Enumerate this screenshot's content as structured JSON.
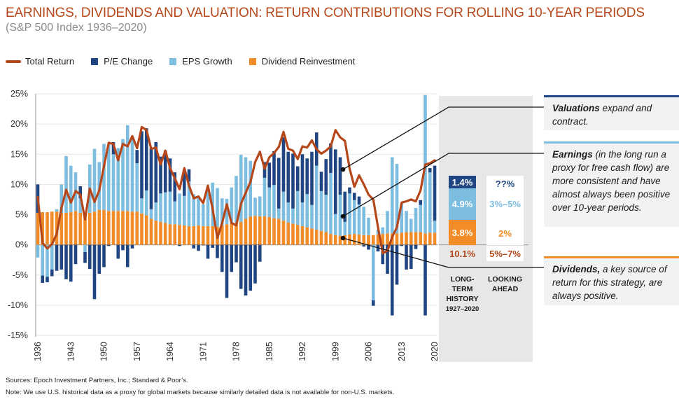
{
  "header": {
    "title": "EARNINGS, DIVIDENDS AND VALUATION: RETURN CONTRIBUTIONS FOR ROLLING 10-YEAR PERIODS",
    "subtitle": "(S&P 500 Index 1936–2020)"
  },
  "legend": {
    "total_return": "Total Return",
    "pe_change": "P/E Change",
    "eps_growth": "EPS Growth",
    "dividend": "Dividend Reinvestment"
  },
  "colors": {
    "total_return": "#b5471b",
    "pe_change": "#1f4682",
    "eps_growth": "#7cbde0",
    "dividend": "#f28c28",
    "title": "#b5471b",
    "panel": "#e8e7e6"
  },
  "chart_data": {
    "type": "bar",
    "subtype": "stacked bar with line overlay",
    "title": "EARNINGS, DIVIDENDS AND VALUATION: RETURN CONTRIBUTIONS FOR ROLLING 10-YEAR PERIODS",
    "subtitle": "(S&P 500 Index 1936–2020)",
    "xlabel": "",
    "ylabel": "",
    "ylim": [
      -15,
      25
    ],
    "yticks": [
      25,
      20,
      15,
      10,
      5,
      0,
      -5,
      -10,
      -15
    ],
    "ytick_labels": [
      "25%",
      "20%",
      "15%",
      "10%",
      "5%",
      "0%",
      "-5%",
      "-10%",
      "-15%"
    ],
    "xtick_labels": [
      "1936",
      "1943",
      "1950",
      "1957",
      "1964",
      "1971",
      "1978",
      "1985",
      "1992",
      "1999",
      "2006",
      "2013",
      "2020"
    ],
    "grid": true,
    "legend_position": "top-left",
    "x": [
      1936,
      1937,
      1938,
      1939,
      1940,
      1941,
      1942,
      1943,
      1944,
      1945,
      1946,
      1947,
      1948,
      1949,
      1950,
      1951,
      1952,
      1953,
      1954,
      1955,
      1956,
      1957,
      1958,
      1959,
      1960,
      1961,
      1962,
      1963,
      1964,
      1965,
      1966,
      1967,
      1968,
      1969,
      1970,
      1971,
      1972,
      1973,
      1974,
      1975,
      1976,
      1977,
      1978,
      1979,
      1980,
      1981,
      1982,
      1983,
      1984,
      1985,
      1986,
      1987,
      1988,
      1989,
      1990,
      1991,
      1992,
      1993,
      1994,
      1995,
      1996,
      1997,
      1998,
      1999,
      2000,
      2001,
      2002,
      2003,
      2004,
      2005,
      2006,
      2007,
      2008,
      2009,
      2010,
      2011,
      2012,
      2013,
      2014,
      2015,
      2016,
      2017,
      2018,
      2019,
      2020
    ],
    "series": [
      {
        "name": "Dividend Reinvestment",
        "kind": "bar",
        "values": [
          5.3,
          5.4,
          5.4,
          5.5,
          5.5,
          5.3,
          5.3,
          5.4,
          5.6,
          5.3,
          5.2,
          5.3,
          5.5,
          5.8,
          5.8,
          5.6,
          5.6,
          5.6,
          5.6,
          5.6,
          5.5,
          5.5,
          5.2,
          4.9,
          4.3,
          4.0,
          3.8,
          3.6,
          3.4,
          3.4,
          3.3,
          3.2,
          3.1,
          3.1,
          3.2,
          3.1,
          3.1,
          3.1,
          3.0,
          3.2,
          3.4,
          3.5,
          3.6,
          3.8,
          4.3,
          4.7,
          4.8,
          4.7,
          4.7,
          4.6,
          4.4,
          4.3,
          4.0,
          3.7,
          3.5,
          3.3,
          3.1,
          2.9,
          2.7,
          2.5,
          2.3,
          2.1,
          1.8,
          1.6,
          1.5,
          1.6,
          1.7,
          1.8,
          1.7,
          1.6,
          1.6,
          1.6,
          1.7,
          1.8,
          1.9,
          1.9,
          1.9,
          2.0,
          2.1,
          2.1,
          2.1,
          2.1,
          1.9,
          2.0,
          2.0
        ]
      },
      {
        "name": "EPS Growth",
        "kind": "bar",
        "values": [
          -2.1,
          -5.1,
          -5.3,
          -4.1,
          0.4,
          4.7,
          9.4,
          7.7,
          6.4,
          2.4,
          -1.2,
          8.0,
          10.4,
          7.9,
          10.9,
          11.1,
          9.4,
          10.4,
          11.9,
          14.2,
          12.4,
          8.0,
          2.5,
          4.1,
          1.6,
          3.0,
          4.7,
          5.1,
          5.4,
          3.8,
          5.2,
          4.9,
          7.4,
          5.3,
          4.7,
          3.6,
          6.0,
          7.2,
          6.4,
          4.5,
          4.2,
          6.0,
          7.8,
          11.1,
          10.2,
          9.2,
          3.0,
          3.3,
          6.4,
          4.9,
          5.5,
          1.7,
          4.8,
          3.3,
          2.5,
          5.6,
          3.9,
          5.5,
          3.9,
          10.6,
          6.6,
          6.2,
          10.1,
          3.5,
          6.8,
          2.2,
          6.8,
          5.6,
          5.0,
          4.7,
          2.9,
          -9.2,
          0.8,
          1.1,
          3.7,
          12.6,
          11.5,
          4.8,
          3.5,
          2.2,
          4.0,
          4.5,
          22.9,
          10.0,
          2.0
        ]
      },
      {
        "name": "P/E Change",
        "kind": "bar",
        "values": [
          4.7,
          -1.2,
          -0.9,
          -1.1,
          -4.3,
          -4.1,
          -5.7,
          -6.1,
          -3.2,
          2.0,
          -1.8,
          -4.0,
          -9.0,
          -4.8,
          -3.7,
          -0.2,
          2.0,
          -2.3,
          -0.9,
          -3.7,
          -0.6,
          2.2,
          11.1,
          10.3,
          10.1,
          10.0,
          6.1,
          6.9,
          5.5,
          4.8,
          -0.2,
          4.4,
          2.0,
          -0.6,
          -1.0,
          -0.1,
          -2.3,
          -0.5,
          -2.2,
          -4.5,
          -8.8,
          -4.5,
          -2.9,
          -7.3,
          -8.4,
          -7.6,
          -6.4,
          -2.8,
          2.6,
          4.1,
          5.6,
          8.4,
          9.0,
          8.4,
          9.1,
          4.1,
          8.0,
          5.9,
          8.8,
          5.5,
          3.2,
          5.9,
          4.9,
          10.7,
          6.2,
          5.0,
          1.0,
          1.2,
          1.3,
          -0.3,
          -0.8,
          -0.9,
          -1.1,
          -3.2,
          -4.8,
          -11.7,
          -6.6,
          -0.2,
          -4.1,
          -4.0,
          -0.7,
          0.8,
          -11.7,
          0.7,
          9.1
        ]
      },
      {
        "name": "Total Return",
        "kind": "line",
        "values": [
          7.9,
          0.3,
          -0.6,
          0.1,
          1.8,
          6.1,
          9.1,
          7.0,
          8.9,
          8.3,
          4.2,
          9.3,
          7.1,
          9.0,
          13.0,
          16.9,
          16.7,
          14.0,
          16.7,
          16.3,
          18.0,
          16.0,
          19.5,
          19.0,
          15.9,
          16.1,
          13.3,
          15.6,
          12.7,
          11.0,
          9.2,
          12.7,
          9.8,
          7.7,
          8.0,
          6.9,
          9.8,
          5.9,
          1.1,
          3.6,
          6.7,
          3.6,
          3.2,
          6.8,
          8.6,
          10.4,
          13.7,
          15.4,
          12.6,
          14.5,
          15.2,
          16.2,
          18.7,
          15.9,
          15.6,
          14.2,
          16.3,
          16.1,
          17.3,
          15.8,
          15.1,
          15.6,
          16.3,
          19.0,
          17.8,
          17.2,
          12.6,
          9.6,
          11.5,
          10.0,
          8.3,
          7.5,
          2.9,
          -1.4,
          -1.0,
          1.3,
          2.9,
          7.0,
          7.2,
          7.5,
          7.2,
          9.0,
          13.3,
          13.5,
          14.0
        ]
      }
    ]
  },
  "side_panel": {
    "long_term": {
      "pe_value": "1.4%",
      "eps_value": "4.9%",
      "div_value": "3.8%",
      "total_value": "10.1%",
      "label_line1": "LONG-",
      "label_line2": "TERM",
      "label_line3": "HISTORY",
      "label_line4": "1927–2020"
    },
    "looking_ahead": {
      "pe_value": "??%",
      "eps_value": "3%–5%",
      "div_value": "2%",
      "total_value": "5%–7%",
      "label_line1": "LOOKING",
      "label_line2": "AHEAD"
    }
  },
  "callouts": {
    "valuations": {
      "bold": "Valuations",
      "text": " expand and contract."
    },
    "earnings": {
      "bold": "Earnings",
      "text": " (in the long run a proxy for free cash flow) are more consistent and have almost always been positive over 10-year periods."
    },
    "dividends": {
      "bold": "Dividends,",
      "text": " a key source of return for this strategy, are always positive."
    }
  },
  "footer": {
    "sources": "Sources: Epoch Investment Partners, Inc.; Standard & Poor’s.",
    "note": "Note: We use U.S. historical data as a proxy for global markets because similarly detailed data is not available for non-U.S. markets."
  }
}
